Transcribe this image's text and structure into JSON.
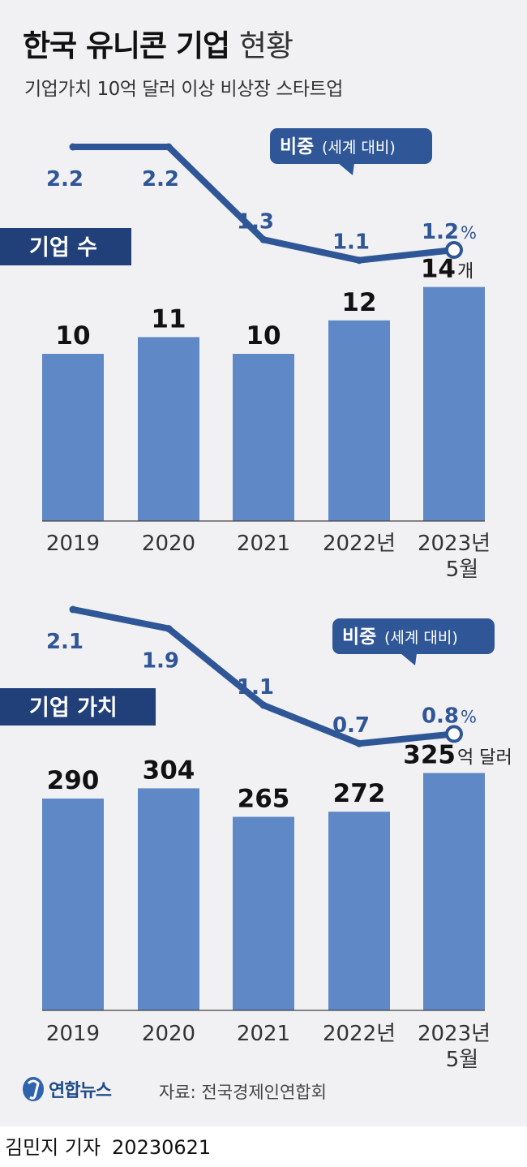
{
  "header": {
    "title_bold": "한국 유니콘 기업",
    "title_light": "현황",
    "subtitle": "기업가치 10억 달러 이상 비상장 스타트업"
  },
  "colors": {
    "bar": "#5f88c6",
    "line": "#2f5696",
    "tag_bg": "#213f78",
    "callout_bg": "#2f5696",
    "background": "#f1f1f4"
  },
  "chart_data": [
    {
      "type": "bar",
      "title": "기업 수",
      "categories": [
        "2019",
        "2020",
        "2021",
        "2022년",
        "2023년 5월"
      ],
      "values": [
        10,
        11,
        10,
        12,
        14
      ],
      "value_labels": [
        "10",
        "11",
        "10",
        "12",
        "14"
      ],
      "unit": "개",
      "line_series": {
        "name": "비중(세계 대비)",
        "values": [
          2.2,
          2.2,
          1.3,
          1.1,
          1.2
        ],
        "labels": [
          "2.2",
          "2.2",
          "1.3",
          "1.1",
          "1.2"
        ],
        "unit": "%"
      },
      "callout": {
        "bold": "비중",
        "normal": "(세계 대비)"
      }
    },
    {
      "type": "bar",
      "title": "기업 가치",
      "categories": [
        "2019",
        "2020",
        "2021",
        "2022년",
        "2023년 5월"
      ],
      "values": [
        290,
        304,
        265,
        272,
        325
      ],
      "value_labels": [
        "290",
        "304",
        "265",
        "272",
        "325"
      ],
      "unit": "억 달러",
      "line_series": {
        "name": "비중(세계 대비)",
        "values": [
          2.1,
          1.9,
          1.1,
          0.7,
          0.8
        ],
        "labels": [
          "2.1",
          "1.9",
          "1.1",
          "0.7",
          "0.8"
        ],
        "unit": "%"
      },
      "callout": {
        "bold": "비중",
        "normal": "(세계 대비)"
      }
    }
  ],
  "footer": {
    "logo_text": "연합뉴스",
    "source": "자료: 전국경제인연합회",
    "author": "김민지 기자",
    "date": "20230621"
  }
}
